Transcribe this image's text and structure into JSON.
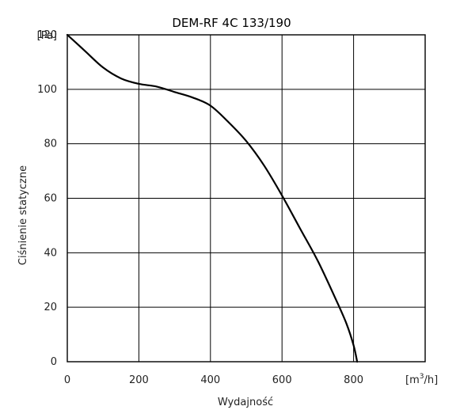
{
  "chart_data": {
    "type": "line",
    "title": "DEM-RF 4C 133/190",
    "xlabel": "Wydajność",
    "ylabel": "Ciśnienie statyczne",
    "x_unit_base": "[m",
    "x_unit_sup": "3",
    "x_unit_tail": "/h]",
    "y_unit": "[Pa]",
    "xlim": [
      0,
      1000
    ],
    "ylim": [
      0,
      120
    ],
    "x_ticks": [
      0,
      200,
      400,
      600,
      800
    ],
    "y_ticks": [
      0,
      20,
      40,
      60,
      80,
      100,
      120
    ],
    "x_tick_labels": [
      "0",
      "200",
      "400",
      "600",
      "800"
    ],
    "y_tick_labels": [
      "0",
      "20",
      "40",
      "60",
      "80",
      "100",
      "120"
    ],
    "grid": true,
    "series": [
      {
        "x": [
          0,
          50,
          100,
          150,
          200,
          250,
          300,
          350,
          400,
          450,
          500,
          550,
          600,
          650,
          700,
          750,
          780,
          800,
          810
        ],
        "y": [
          120,
          114,
          108,
          104,
          102,
          101,
          99,
          97,
          94,
          88,
          81,
          72,
          61,
          49,
          37,
          23,
          14,
          6,
          0
        ]
      }
    ]
  },
  "colors": {
    "line": "#000000",
    "grid": "#000000",
    "background": "#ffffff"
  }
}
